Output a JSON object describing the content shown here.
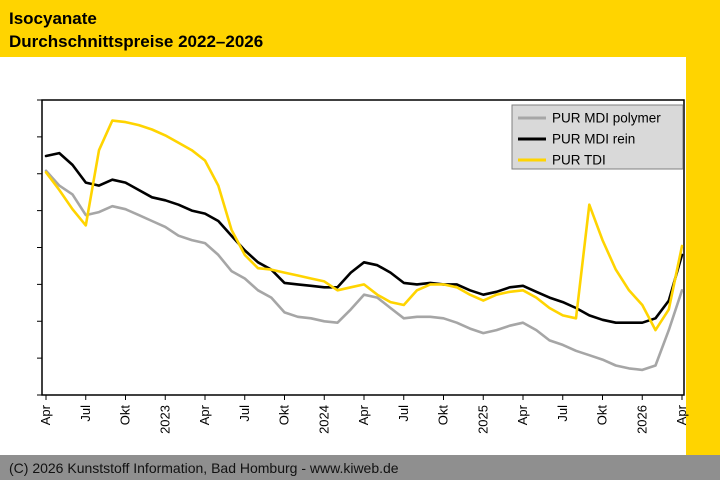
{
  "header": {
    "title_line1": "Isocyanate",
    "title_line2": "Durchschnittspreise 2022–2026"
  },
  "footer": {
    "copyright": "(C) 2026 Kunststoff Information, Bad Homburg - www.kiweb.de"
  },
  "colors": {
    "accent_yellow": "#ffd400",
    "footer_gray": "#8f8f8f",
    "legend_bg": "#d9d9d9",
    "plot_border": "#000000"
  },
  "chart_data": {
    "type": "line",
    "title": "Isocyanate Durchschnittspreise 2022–2026",
    "xlabel": "",
    "ylabel": "",
    "y_axis_labels_visible": false,
    "y_scale": "relative-price-index-0-100 (no numeric y labels shown in chart)",
    "ylim": [
      0,
      100
    ],
    "grid": false,
    "legend_position": "top-right-inside",
    "x_start": "2022-04",
    "x_step_months": 1,
    "n_points": 49,
    "x_tick_labels": [
      "Apr",
      "Jul",
      "Okt",
      "2023",
      "Apr",
      "Jul",
      "Okt",
      "2024",
      "Apr",
      "Jul",
      "Okt",
      "2025",
      "Apr",
      "Jul",
      "Okt",
      "2026",
      "Apr"
    ],
    "series": [
      {
        "name": "PUR MDI polymer",
        "color": "#a6a6a6",
        "values": [
          76,
          71,
          68,
          61,
          62,
          64,
          63,
          61,
          59,
          57,
          54,
          52.5,
          51.5,
          47.5,
          42,
          39.5,
          35.5,
          33,
          28,
          26.5,
          26,
          25,
          24.5,
          29,
          34,
          33,
          29.5,
          26,
          26.5,
          26.5,
          26,
          24.5,
          22.5,
          21,
          22,
          23.5,
          24.5,
          22,
          18.5,
          17,
          15,
          13.5,
          12,
          10,
          9,
          8.5,
          10,
          22,
          35.5
        ]
      },
      {
        "name": "PUR MDI rein",
        "color": "#000000",
        "values": [
          81,
          82,
          78,
          72,
          71,
          73,
          72,
          69.5,
          67,
          66,
          64.5,
          62.5,
          61.5,
          59,
          54,
          49,
          45,
          42.5,
          38,
          37.5,
          37,
          36.5,
          36.5,
          41.5,
          45,
          44,
          41.5,
          38,
          37.5,
          38,
          37.5,
          37.5,
          35.5,
          34,
          35,
          36.5,
          37,
          35,
          33,
          31.5,
          29.5,
          27,
          25.5,
          24.5,
          24.5,
          24.5,
          26,
          32,
          47.5
        ]
      },
      {
        "name": "PUR TDI",
        "color": "#ffd400",
        "values": [
          75.5,
          69.5,
          63,
          57.5,
          83,
          93,
          92.5,
          91.5,
          90,
          88,
          85.5,
          83,
          79.5,
          71,
          56,
          47.5,
          43,
          42.5,
          41.5,
          40.5,
          39.5,
          38.5,
          35.5,
          36.5,
          37.5,
          34,
          31.5,
          30.5,
          35.5,
          37.5,
          37.5,
          36.5,
          34,
          32,
          34,
          35,
          35.5,
          33,
          29.5,
          27,
          26,
          64.5,
          52.5,
          42.5,
          35.5,
          30.5,
          22,
          29,
          50.5
        ]
      }
    ]
  }
}
